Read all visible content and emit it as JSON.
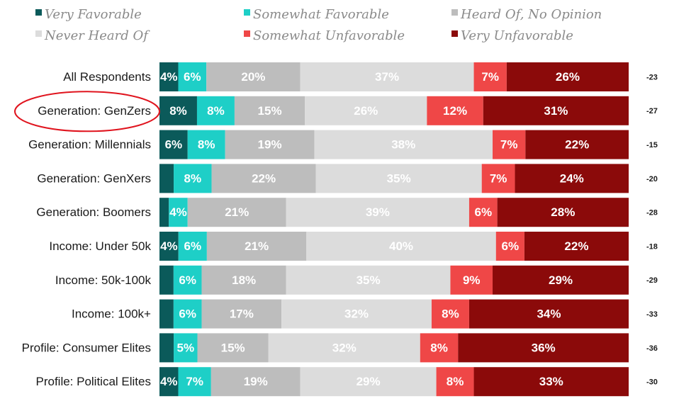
{
  "chart_data": {
    "type": "bar",
    "orientation": "horizontal",
    "stacked": true,
    "legend_position": "top",
    "series": [
      {
        "name": "Very Favorable",
        "color": "#0b5a5a",
        "values": [
          4,
          8,
          6,
          3,
          2,
          4,
          3,
          3,
          3,
          4
        ]
      },
      {
        "name": "Somewhat Favorable",
        "color": "#1ecfc7",
        "values": [
          6,
          8,
          8,
          8,
          4,
          6,
          6,
          6,
          5,
          7
        ]
      },
      {
        "name": "Heard Of, No Opinion",
        "color": "#bdbdbd",
        "values": [
          20,
          15,
          19,
          22,
          21,
          21,
          18,
          17,
          15,
          19
        ]
      },
      {
        "name": "Never Heard Of",
        "color": "#dcdcdc",
        "values": [
          37,
          26,
          38,
          35,
          39,
          40,
          35,
          32,
          32,
          29
        ]
      },
      {
        "name": "Somewhat Unfavorable",
        "color": "#ef4747",
        "values": [
          7,
          12,
          7,
          7,
          6,
          6,
          9,
          8,
          8,
          8
        ]
      },
      {
        "name": "Very Unfavorable",
        "color": "#8b0a0a",
        "values": [
          26,
          31,
          22,
          24,
          28,
          22,
          29,
          34,
          36,
          33
        ]
      }
    ],
    "data_labels": [
      [
        "4%",
        "6%",
        "20%",
        "37%",
        "7%",
        "26%"
      ],
      [
        "8%",
        "8%",
        "15%",
        "26%",
        "12%",
        "31%"
      ],
      [
        "6%",
        "8%",
        "19%",
        "38%",
        "7%",
        "22%"
      ],
      [
        "",
        "8%",
        "22%",
        "35%",
        "7%",
        "24%"
      ],
      [
        "",
        "4%",
        "21%",
        "39%",
        "6%",
        "28%"
      ],
      [
        "4%",
        "6%",
        "21%",
        "40%",
        "6%",
        "22%"
      ],
      [
        "",
        "6%",
        "18%",
        "35%",
        "9%",
        "29%"
      ],
      [
        "",
        "6%",
        "17%",
        "32%",
        "8%",
        "34%"
      ],
      [
        "",
        "5%",
        "15%",
        "32%",
        "8%",
        "36%"
      ],
      [
        "4%",
        "7%",
        "19%",
        "29%",
        "8%",
        "33%"
      ]
    ],
    "categories": [
      "All Respondents",
      "Generation: GenZers",
      "Generation: Millennials",
      "Generation: GenXers",
      "Generation: Boomers",
      "Income: Under 50k",
      "Income: 50k-100k",
      "Income: 100k+",
      "Profile: Consumer Elites",
      "Profile: Political Elites"
    ],
    "net_values": [
      "-23",
      "-27",
      "-15",
      "-20",
      "-28",
      "-18",
      "-29",
      "-33",
      "-36",
      "-30"
    ],
    "highlighted_category": "Generation: GenZers",
    "highlight_color": "#e0141e"
  }
}
